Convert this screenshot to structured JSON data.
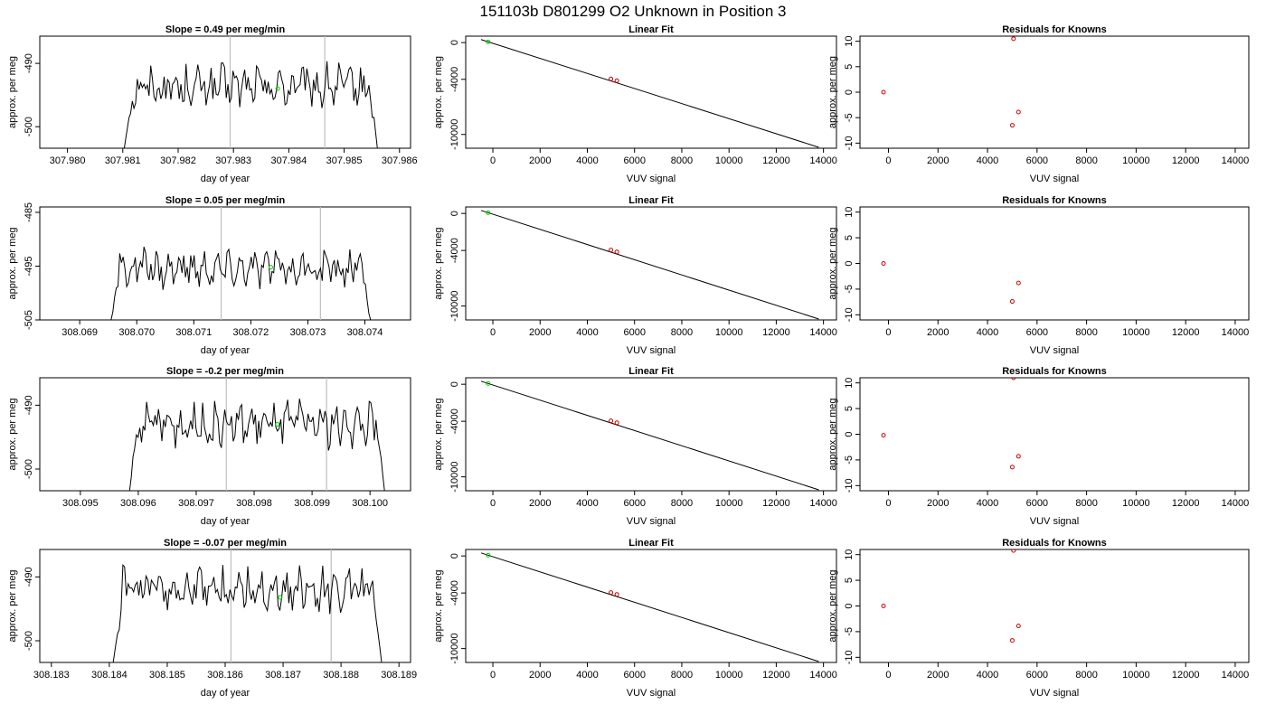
{
  "page_title": "151103b      D801299   O2 Unknown in Position  3",
  "colors": {
    "line": "#000000",
    "grid": "#bebebe",
    "unknown": "#00cc00",
    "known": "#cc0000"
  },
  "chart_data": [
    {
      "type": "line",
      "panel": "time-series",
      "row": 0,
      "title": "Slope =  0.49  per meg/min",
      "xlabel": "day of year",
      "ylabel": "approx. per meg",
      "xlim": [
        307.9795,
        307.9862
      ],
      "ylim": [
        -503.4,
        -485.7
      ],
      "xticks": [
        307.98,
        307.981,
        307.982,
        307.983,
        307.984,
        307.985,
        307.986
      ],
      "xtick_labels": [
        "307.980",
        "307.981",
        "307.982",
        "307.983",
        "307.984",
        "307.985",
        "307.986"
      ],
      "yticks": [
        -490,
        -500
      ],
      "ytick_labels": [
        "-490",
        "-500"
      ],
      "vlines": [
        307.98294,
        307.98465
      ],
      "data_start": 307.98105,
      "data_end": 307.9856,
      "level": -493.7,
      "start_value": -502.0,
      "end_value": -503.4,
      "highlight": {
        "x": 307.9838,
        "y": -494.0
      }
    },
    {
      "type": "line",
      "panel": "linear-fit",
      "row": 0,
      "title": "Linear Fit",
      "xlabel": "VUV signal",
      "ylabel": "approx. per meg",
      "xlim": [
        -1150,
        14550
      ],
      "ylim": [
        -11500,
        700
      ],
      "xticks": [
        0,
        2000,
        4000,
        6000,
        8000,
        10000,
        12000,
        14000
      ],
      "xtick_labels": [
        "0",
        "2000",
        "4000",
        "6000",
        "8000",
        "10000",
        "12000",
        "14000"
      ],
      "yticks": [
        0,
        -4000,
        -10000
      ],
      "ytick_labels": [
        "0",
        "-4000",
        "-10000"
      ],
      "fit_line": [
        [
          -500,
          330
        ],
        [
          13800,
          -11400
        ]
      ],
      "unknown_points": [
        [
          -200,
          75
        ]
      ],
      "known_points": [
        [
          5000,
          -3950
        ],
        [
          5250,
          -4150
        ]
      ]
    },
    {
      "type": "scatter",
      "panel": "residuals",
      "row": 0,
      "title": "Residuals for Knowns",
      "xlabel": "VUV signal",
      "ylabel": "approx. per meg",
      "xlim": [
        -1150,
        14550
      ],
      "ylim": [
        -11,
        11
      ],
      "xticks": [
        0,
        2000,
        4000,
        6000,
        8000,
        10000,
        12000,
        14000
      ],
      "xtick_labels": [
        "0",
        "2000",
        "4000",
        "6000",
        "8000",
        "10000",
        "12000",
        "14000"
      ],
      "yticks": [
        10,
        5,
        0,
        -5,
        -10
      ],
      "ytick_labels": [
        "10",
        "5",
        "0",
        "-5",
        "-10"
      ],
      "known_points": [
        [
          -200,
          0.0
        ],
        [
          5050,
          10.5
        ],
        [
          5250,
          -3.9
        ],
        [
          5000,
          -6.5
        ]
      ]
    },
    {
      "type": "line",
      "panel": "time-series",
      "row": 1,
      "title": "Slope =  0.05  per meg/min",
      "xlabel": "day of year",
      "ylabel": "approx. per meg",
      "xlim": [
        308.0683,
        308.0748
      ],
      "ylim": [
        -505.0,
        -484.0
      ],
      "xticks": [
        308.069,
        308.07,
        308.071,
        308.072,
        308.073,
        308.074
      ],
      "xtick_labels": [
        "308.069",
        "308.070",
        "308.071",
        "308.072",
        "308.073",
        "308.074"
      ],
      "yticks": [
        -485,
        -495,
        -505
      ],
      "ytick_labels": [
        "-485",
        "-495",
        "-505"
      ],
      "vlines": [
        308.07148,
        308.07322
      ],
      "data_start": 308.06955,
      "data_end": 308.0741,
      "level": -495.5,
      "start_value": -505.0,
      "end_value": -505.0,
      "highlight": {
        "x": 308.07235,
        "y": -495.2
      }
    },
    {
      "type": "line",
      "panel": "linear-fit",
      "row": 1,
      "title": "Linear Fit",
      "xlabel": "VUV signal",
      "ylabel": "approx. per meg",
      "xlim": [
        -1150,
        14550
      ],
      "ylim": [
        -11500,
        700
      ],
      "xticks": [
        0,
        2000,
        4000,
        6000,
        8000,
        10000,
        12000,
        14000
      ],
      "xtick_labels": [
        "0",
        "2000",
        "4000",
        "6000",
        "8000",
        "10000",
        "12000",
        "14000"
      ],
      "yticks": [
        0,
        -4000,
        -10000
      ],
      "ytick_labels": [
        "0",
        "-4000",
        "-10000"
      ],
      "fit_line": [
        [
          -500,
          330
        ],
        [
          13800,
          -11400
        ]
      ],
      "unknown_points": [
        [
          -200,
          75
        ]
      ],
      "known_points": [
        [
          5000,
          -3950
        ],
        [
          5250,
          -4150
        ]
      ]
    },
    {
      "type": "scatter",
      "panel": "residuals",
      "row": 1,
      "title": "Residuals for Knowns",
      "xlabel": "VUV signal",
      "ylabel": "approx. per meg",
      "xlim": [
        -1150,
        14550
      ],
      "ylim": [
        -11,
        11
      ],
      "xticks": [
        0,
        2000,
        4000,
        6000,
        8000,
        10000,
        12000,
        14000
      ],
      "xtick_labels": [
        "0",
        "2000",
        "4000",
        "6000",
        "8000",
        "10000",
        "12000",
        "14000"
      ],
      "yticks": [
        10,
        5,
        0,
        -5,
        -10
      ],
      "ytick_labels": [
        "10",
        "5",
        "0",
        "-5",
        "-10"
      ],
      "known_points": [
        [
          -200,
          0.0
        ],
        [
          5250,
          -3.8
        ],
        [
          5000,
          -7.4
        ]
      ]
    },
    {
      "type": "line",
      "panel": "time-series",
      "row": 2,
      "title": "Slope =  -0.2  per meg/min",
      "xlabel": "day of year",
      "ylabel": "approx. per meg",
      "xlim": [
        308.0943,
        308.1007
      ],
      "ylim": [
        -503.4,
        -485.7
      ],
      "xticks": [
        308.095,
        308.096,
        308.097,
        308.098,
        308.099,
        308.1
      ],
      "xtick_labels": [
        "308.095",
        "308.096",
        "308.097",
        "308.098",
        "308.099",
        "308.100"
      ],
      "yticks": [
        -490,
        -500
      ],
      "ytick_labels": [
        "-490",
        "-500"
      ],
      "vlines": [
        308.09752,
        308.09925
      ],
      "data_start": 308.09585,
      "data_end": 308.10025,
      "level": -493.0,
      "start_value": -503.4,
      "end_value": -503.4,
      "highlight": {
        "x": 308.0984,
        "y": -493.0
      }
    },
    {
      "type": "line",
      "panel": "linear-fit",
      "row": 2,
      "title": "Linear Fit",
      "xlabel": "VUV signal",
      "ylabel": "approx. per meg",
      "xlim": [
        -1150,
        14550
      ],
      "ylim": [
        -11500,
        700
      ],
      "xticks": [
        0,
        2000,
        4000,
        6000,
        8000,
        10000,
        12000,
        14000
      ],
      "xtick_labels": [
        "0",
        "2000",
        "4000",
        "6000",
        "8000",
        "10000",
        "12000",
        "14000"
      ],
      "yticks": [
        0,
        -4000,
        -10000
      ],
      "ytick_labels": [
        "0",
        "-4000",
        "-10000"
      ],
      "fit_line": [
        [
          -500,
          330
        ],
        [
          13800,
          -11400
        ]
      ],
      "unknown_points": [
        [
          -200,
          75
        ]
      ],
      "known_points": [
        [
          5000,
          -3950
        ],
        [
          5250,
          -4150
        ]
      ]
    },
    {
      "type": "scatter",
      "panel": "residuals",
      "row": 2,
      "title": "Residuals for Knowns",
      "xlabel": "VUV signal",
      "ylabel": "approx. per meg",
      "xlim": [
        -1150,
        14550
      ],
      "ylim": [
        -11,
        11
      ],
      "xticks": [
        0,
        2000,
        4000,
        6000,
        8000,
        10000,
        12000,
        14000
      ],
      "xtick_labels": [
        "0",
        "2000",
        "4000",
        "6000",
        "8000",
        "10000",
        "12000",
        "14000"
      ],
      "yticks": [
        10,
        5,
        0,
        -5,
        -10
      ],
      "ytick_labels": [
        "10",
        "5",
        "0",
        "-5",
        "-10"
      ],
      "known_points": [
        [
          -200,
          -0.2
        ],
        [
          5050,
          11.0
        ],
        [
          5250,
          -4.3
        ],
        [
          5000,
          -6.4
        ]
      ]
    },
    {
      "type": "line",
      "panel": "time-series",
      "row": 3,
      "title": "Slope =  -0.07  per meg/min",
      "xlabel": "day of year",
      "ylabel": "approx. per meg",
      "xlim": [
        308.1828,
        308.1892
      ],
      "ylim": [
        -503.4,
        -485.7
      ],
      "xticks": [
        308.183,
        308.184,
        308.185,
        308.186,
        308.187,
        308.188,
        308.189
      ],
      "xtick_labels": [
        "308.183",
        "308.184",
        "308.185",
        "308.186",
        "308.187",
        "308.188",
        "308.189"
      ],
      "yticks": [
        -490,
        -500
      ],
      "ytick_labels": [
        "-490",
        "-500"
      ],
      "vlines": [
        308.1861,
        308.18783
      ],
      "data_start": 308.18408,
      "data_end": 308.1887,
      "level": -492.0,
      "start_value": -502.6,
      "end_value": -503.4,
      "highlight": {
        "x": 308.18695,
        "y": -493.2
      }
    },
    {
      "type": "line",
      "panel": "linear-fit",
      "row": 3,
      "title": "Linear Fit",
      "xlabel": "VUV signal",
      "ylabel": "approx. per meg",
      "xlim": [
        -1150,
        14550
      ],
      "ylim": [
        -11500,
        700
      ],
      "xticks": [
        0,
        2000,
        4000,
        6000,
        8000,
        10000,
        12000,
        14000
      ],
      "xtick_labels": [
        "0",
        "2000",
        "4000",
        "6000",
        "8000",
        "10000",
        "12000",
        "14000"
      ],
      "yticks": [
        0,
        -4000,
        -10000
      ],
      "ytick_labels": [
        "0",
        "-4000",
        "-10000"
      ],
      "fit_line": [
        [
          -500,
          330
        ],
        [
          13800,
          -11400
        ]
      ],
      "unknown_points": [
        [
          -200,
          75
        ]
      ],
      "known_points": [
        [
          5000,
          -3950
        ],
        [
          5250,
          -4150
        ]
      ]
    },
    {
      "type": "scatter",
      "panel": "residuals",
      "row": 3,
      "title": "Residuals for Knowns",
      "xlabel": "VUV signal",
      "ylabel": "approx. per meg",
      "xlim": [
        -1150,
        14550
      ],
      "ylim": [
        -11,
        11
      ],
      "xticks": [
        0,
        2000,
        4000,
        6000,
        8000,
        10000,
        12000,
        14000
      ],
      "xtick_labels": [
        "0",
        "2000",
        "4000",
        "6000",
        "8000",
        "10000",
        "12000",
        "14000"
      ],
      "yticks": [
        10,
        5,
        0,
        -5,
        -10
      ],
      "ytick_labels": [
        "10",
        "5",
        "0",
        "-5",
        "-10"
      ],
      "known_points": [
        [
          -200,
          0.0
        ],
        [
          5050,
          10.8
        ],
        [
          5250,
          -3.9
        ],
        [
          5000,
          -6.7
        ]
      ]
    }
  ]
}
